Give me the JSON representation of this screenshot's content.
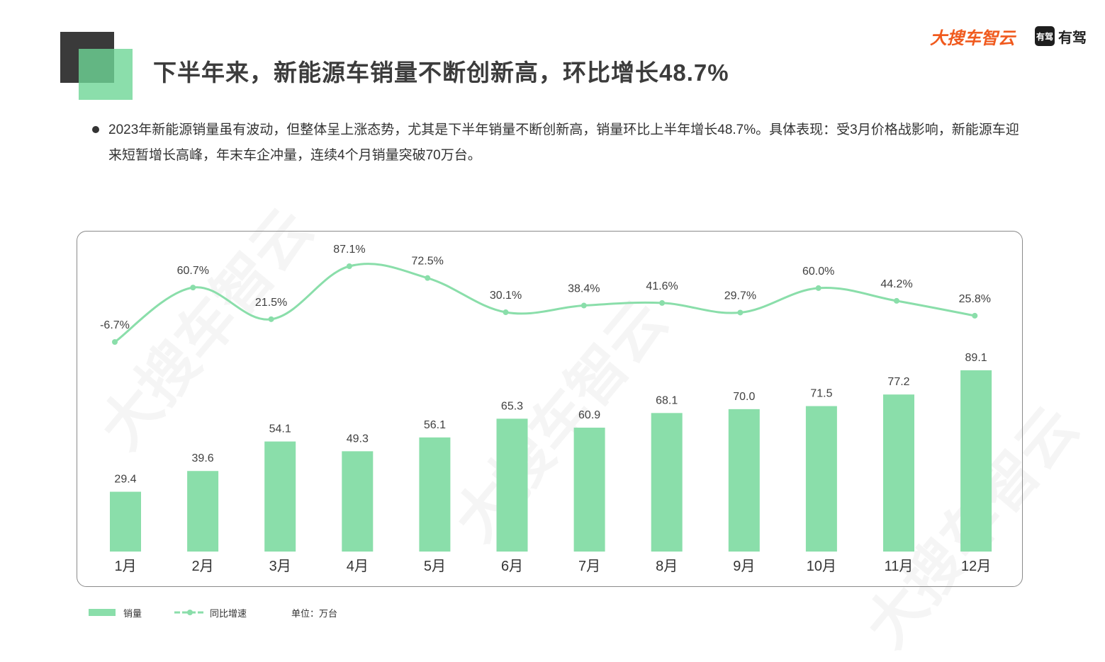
{
  "header": {
    "title": "下半年来，新能源车销量不断创新高，环比增长48.7%",
    "logo_primary": "大搜车智云",
    "logo_secondary_icon": "有驾",
    "logo_secondary": "有驾"
  },
  "summary": {
    "text": "2023年新能源销量虽有波动，但整体呈上涨态势，尤其是下半年销量不断创新高，销量环比上半年增长48.7%。具体表现：受3月价格战影响，新能源车迎来短暂增长高峰，年末车企冲量，连续4个月销量突破70万台。"
  },
  "legend": {
    "bar_label": "销量",
    "line_label": "同比增速",
    "unit": "单位：万台"
  },
  "watermark": "大搜车智云",
  "colors": {
    "bar": "#8adeaa",
    "line": "#8adeaa",
    "accent_dark": "#3a3a3a",
    "logo": "#f05a1e"
  },
  "chart_data": {
    "type": "bar",
    "categories": [
      "1月",
      "2月",
      "3月",
      "4月",
      "5月",
      "6月",
      "7月",
      "8月",
      "9月",
      "10月",
      "11月",
      "12月"
    ],
    "series": [
      {
        "name": "销量",
        "type": "bar",
        "values": [
          29.4,
          39.6,
          54.1,
          49.3,
          56.1,
          65.3,
          60.9,
          68.1,
          70.0,
          71.5,
          77.2,
          89.1
        ],
        "labels": [
          "29.4",
          "39.6",
          "54.1",
          "49.3",
          "56.1",
          "65.3",
          "60.9",
          "68.1",
          "70.0",
          "71.5",
          "77.2",
          "89.1"
        ]
      },
      {
        "name": "同比增速",
        "type": "line",
        "smooth": true,
        "values": [
          -6.7,
          60.7,
          21.5,
          87.1,
          72.5,
          30.1,
          38.4,
          41.6,
          29.7,
          60.0,
          44.2,
          25.8
        ],
        "labels": [
          "-6.7%",
          "60.7%",
          "21.5%",
          "87.1%",
          "72.5%",
          "30.1%",
          "38.4%",
          "41.6%",
          "29.7%",
          "60.0%",
          "44.2%",
          "25.8%"
        ]
      }
    ],
    "unit": "万台",
    "grid": false,
    "legend_position": "bottom-left"
  }
}
